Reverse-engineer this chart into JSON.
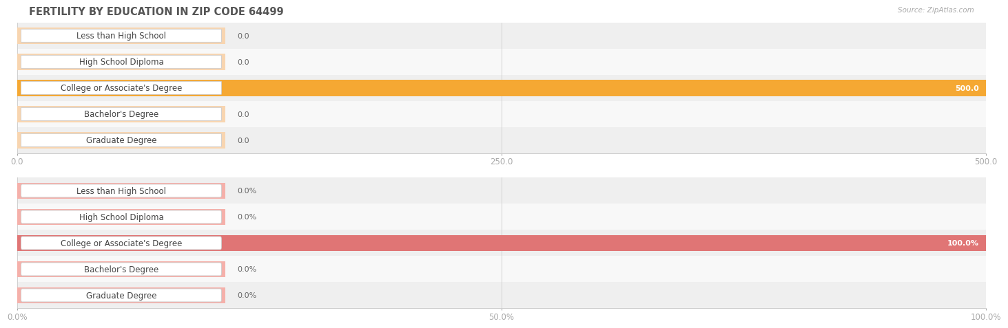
{
  "title": "FERTILITY BY EDUCATION IN ZIP CODE 64499",
  "source": "Source: ZipAtlas.com",
  "categories": [
    "Less than High School",
    "High School Diploma",
    "College or Associate's Degree",
    "Bachelor's Degree",
    "Graduate Degree"
  ],
  "values_count": [
    0.0,
    0.0,
    500.0,
    0.0,
    0.0
  ],
  "values_pct": [
    0.0,
    0.0,
    100.0,
    0.0,
    0.0
  ],
  "xlim_count": [
    0,
    500
  ],
  "xlim_pct": [
    0,
    100
  ],
  "xticks_count": [
    0.0,
    250.0,
    500.0
  ],
  "xticks_pct": [
    0.0,
    50.0,
    100.0
  ],
  "xtick_labels_count": [
    "0.0",
    "250.0",
    "500.0"
  ],
  "xtick_labels_pct": [
    "0.0%",
    "50.0%",
    "100.0%"
  ],
  "bar_color_count_normal": "#f8d5b0",
  "bar_color_count_highlight": "#f5a833",
  "bar_color_pct_normal": "#f5b0aa",
  "bar_color_pct_highlight": "#e07575",
  "row_bg_odd": "#efefef",
  "row_bg_even": "#f8f8f8",
  "title_color": "#555555",
  "tick_color": "#aaaaaa",
  "label_font_size": 8.5,
  "title_font_size": 10.5,
  "value_font_size": 8,
  "bar_height": 0.62,
  "background_color": "#ffffff",
  "highlight_idx": 2
}
